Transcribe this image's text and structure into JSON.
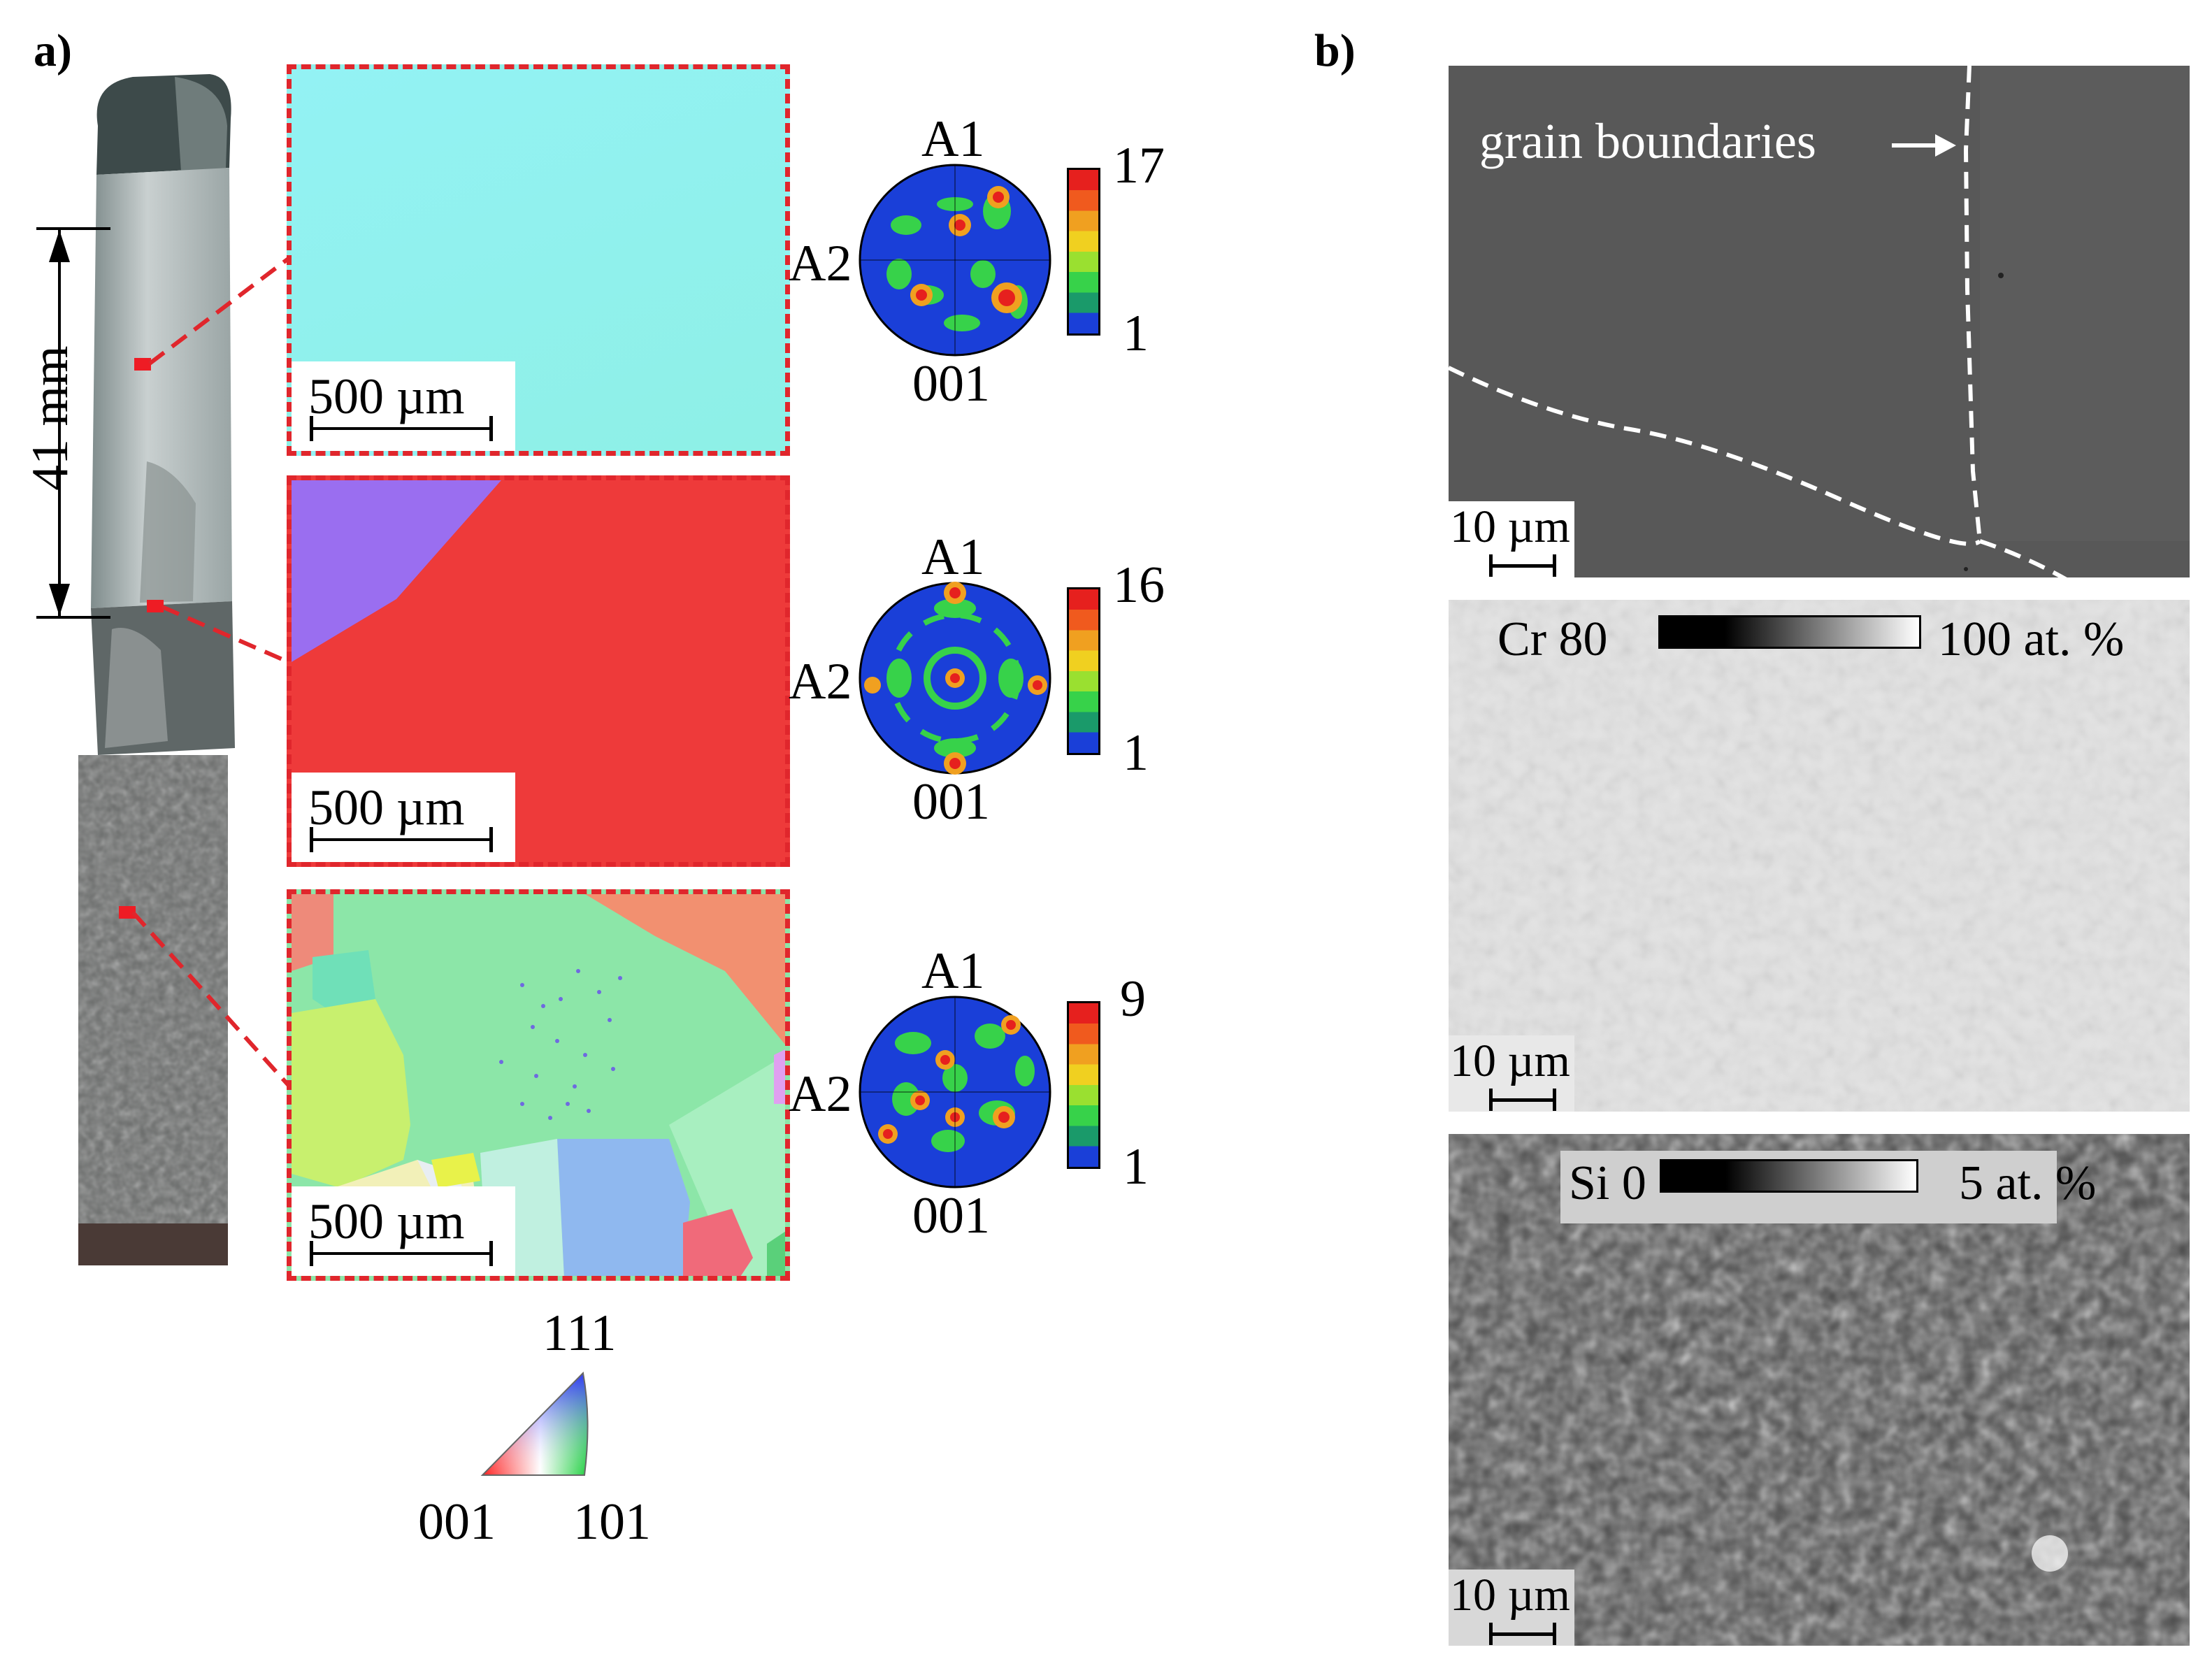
{
  "panel_a": {
    "label": "a)",
    "sample_length": "41 mm",
    "maps": [
      {
        "scale_bar": "500 µm",
        "pole_figure": {
          "axis_top": "A1",
          "axis_left": "A2",
          "plane": "001",
          "max": "17",
          "min": "1"
        }
      },
      {
        "scale_bar": "500 µm",
        "pole_figure": {
          "axis_top": "A1",
          "axis_left": "A2",
          "plane": "001",
          "max": "16",
          "min": "1"
        }
      },
      {
        "scale_bar": "500 µm",
        "pole_figure": {
          "axis_top": "A1",
          "axis_left": "A2",
          "plane": "001",
          "max": "9",
          "min": "1"
        }
      }
    ],
    "ipf_key": {
      "top": "111",
      "left": "001",
      "right": "101"
    }
  },
  "panel_b": {
    "label": "b)",
    "sem": {
      "annotation": "grain boundaries",
      "scale_bar": "10 µm"
    },
    "cr_map": {
      "element": "Cr",
      "min": "80",
      "max": "100 at. %",
      "scale_bar": "10 µm"
    },
    "si_map": {
      "element": "Si",
      "min": "0",
      "max": "5 at. %",
      "scale_bar": "10 µm"
    }
  },
  "colors": {
    "dashed_frame": "#e0262c",
    "map1": "#8ff0ef",
    "map2": "#ee3a3a",
    "map2_grain": "#9a6ef0",
    "sem_bg": "#5a5a5a"
  }
}
